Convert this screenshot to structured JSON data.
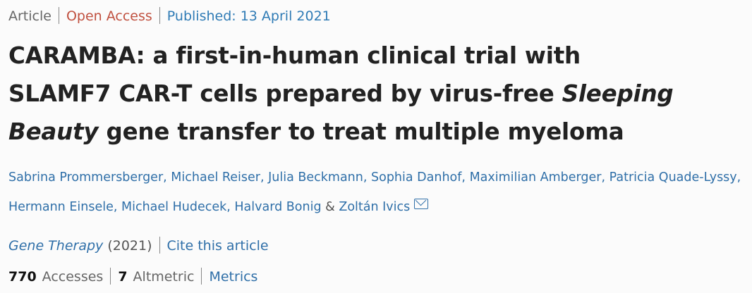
{
  "meta": {
    "type": "Article",
    "access": "Open Access",
    "published": "Published: 13 April 2021"
  },
  "title": {
    "line1": "CARAMBA: a first-in-human clinical trial with",
    "line2": "SLAMF7 CAR-T cells prepared by virus-free ",
    "italic1": "Sleeping",
    "italic2": "Beauty",
    "line3": " gene transfer to treat multiple myeloma"
  },
  "authors": [
    "Sabrina Prommersberger",
    "Michael Reiser",
    "Julia Beckmann",
    "Sophia Danhof",
    "Maximilian Amberger",
    "Patricia Quade-Lyssy",
    "Hermann Einsele",
    "Michael Hudecek",
    "Halvard Bonig",
    "Zoltán Ivics"
  ],
  "authors_joiner": {
    "comma": ", ",
    "amp": " & "
  },
  "journal": {
    "name": "Gene Therapy",
    "year": " (2021)",
    "cite": "Cite this article"
  },
  "metrics": {
    "accesses_count": "770",
    "accesses_label": "Accesses",
    "altmetric_count": "7",
    "altmetric_label": "Altmetric",
    "metrics_link": "Metrics"
  },
  "colors": {
    "open_access": "#c0503f",
    "link": "#2f6fa8",
    "text": "#222222"
  }
}
